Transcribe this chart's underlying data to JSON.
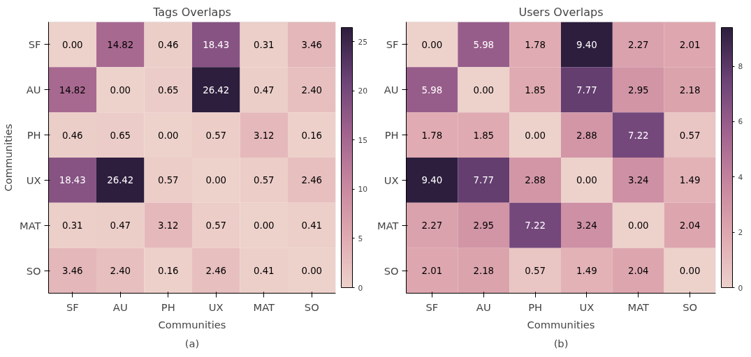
{
  "chart_data": [
    {
      "type": "heatmap",
      "title": "Tags Overlaps",
      "xlabel": "Communities",
      "ylabel": "Communities",
      "annotations": [
        "(a)"
      ],
      "categories": [
        "SF",
        "AU",
        "PH",
        "UX",
        "MAT",
        "SO"
      ],
      "y_categories": [
        "SF",
        "AU",
        "PH",
        "UX",
        "MAT",
        "SO"
      ],
      "cells": [
        [
          0.0,
          14.82,
          0.46,
          18.43,
          0.31,
          3.46
        ],
        [
          14.82,
          0.0,
          0.65,
          26.42,
          0.47,
          2.4
        ],
        [
          0.46,
          0.65,
          0.0,
          0.57,
          3.12,
          0.16
        ],
        [
          18.43,
          26.42,
          0.57,
          0.0,
          0.57,
          2.46
        ],
        [
          0.31,
          0.47,
          3.12,
          0.57,
          0.0,
          0.41
        ],
        [
          3.46,
          2.4,
          0.16,
          2.46,
          0.41,
          0.0
        ]
      ],
      "cell_labels": [
        [
          "0.00",
          "14.82",
          "0.46",
          "18.43",
          "0.31",
          "3.46"
        ],
        [
          "14.82",
          "0.00",
          "0.65",
          "26.42",
          "0.47",
          "2.40"
        ],
        [
          "0.46",
          "0.65",
          "0.00",
          "0.57",
          "3.12",
          "0.16"
        ],
        [
          "18.43",
          "26.42",
          "0.57",
          "0.00",
          "0.57",
          "2.46"
        ],
        [
          "0.31",
          "0.47",
          "3.12",
          "0.57",
          "0.00",
          "0.41"
        ],
        [
          "3.46",
          "2.40",
          "0.16",
          "2.46",
          "0.41",
          "0.00"
        ]
      ],
      "clim": [
        0,
        26.42
      ],
      "cticks": [
        0,
        5,
        10,
        15,
        20,
        25
      ],
      "data_labels": true
    },
    {
      "type": "heatmap",
      "title": "Users Overlaps",
      "xlabel": "Communities",
      "annotations": [
        "(b)"
      ],
      "categories": [
        "SF",
        "AU",
        "PH",
        "UX",
        "MAT",
        "SO"
      ],
      "y_categories": [
        "SF",
        "AU",
        "PH",
        "UX",
        "MAT",
        "SO"
      ],
      "cells": [
        [
          0.0,
          5.98,
          1.78,
          9.4,
          2.27,
          2.01
        ],
        [
          5.98,
          0.0,
          1.85,
          7.77,
          2.95,
          2.18
        ],
        [
          1.78,
          1.85,
          0.0,
          2.88,
          7.22,
          0.57
        ],
        [
          9.4,
          7.77,
          2.88,
          0.0,
          3.24,
          1.49
        ],
        [
          2.27,
          2.95,
          7.22,
          3.24,
          0.0,
          2.04
        ],
        [
          2.01,
          2.18,
          0.57,
          1.49,
          2.04,
          0.0
        ]
      ],
      "cell_labels": [
        [
          "0.00",
          "5.98",
          "1.78",
          "9.40",
          "2.27",
          "2.01"
        ],
        [
          "5.98",
          "0.00",
          "1.85",
          "7.77",
          "2.95",
          "2.18"
        ],
        [
          "1.78",
          "1.85",
          "0.00",
          "2.88",
          "7.22",
          "0.57"
        ],
        [
          "9.40",
          "7.77",
          "2.88",
          "0.00",
          "3.24",
          "1.49"
        ],
        [
          "2.27",
          "2.95",
          "7.22",
          "3.24",
          "0.00",
          "2.04"
        ],
        [
          "2.01",
          "2.18",
          "0.57",
          "1.49",
          "2.04",
          "0.00"
        ]
      ],
      "clim": [
        0,
        9.4
      ],
      "cticks": [
        0,
        2,
        4,
        6,
        8
      ],
      "data_labels": true
    }
  ]
}
